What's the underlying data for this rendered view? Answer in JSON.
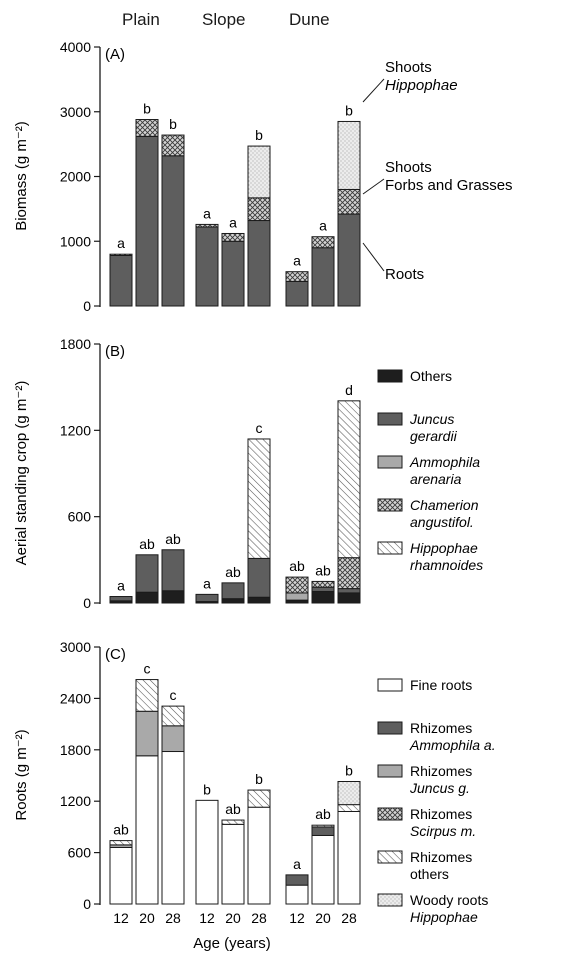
{
  "sites": [
    "Plain",
    "Slope",
    "Dune"
  ],
  "xlabel": "Age (years)",
  "ages": [
    "12",
    "20",
    "28"
  ],
  "palette": {
    "roots_dark": "#5e5e5e",
    "shoot_grey": "#8e8e8e",
    "hippo_light": "#e0e0e0",
    "others": "#1e1e1e",
    "juncus": "#555555",
    "ammophila": "#a9a9a9",
    "fine": "#ffffff",
    "woody": "#cfcfcf"
  },
  "chart_data": [
    {
      "type": "bar",
      "panel": "(A)",
      "ylabel": "Biomass (g m⁻²)",
      "ylim": [
        0,
        4000
      ],
      "yticks": [
        0,
        1000,
        2000,
        3000,
        4000
      ],
      "groups": [
        "Plain",
        "Slope",
        "Dune"
      ],
      "categories": [
        "12",
        "20",
        "28"
      ],
      "stacked": true,
      "series": [
        {
          "name": "Roots",
          "pattern": "dark",
          "values": [
            [
              780,
              2620,
              2320
            ],
            [
              1220,
              1000,
              1320
            ],
            [
              380,
              900,
              1420
            ]
          ]
        },
        {
          "name": "Shoots Forbs and Grasses",
          "pattern": "crosshatch",
          "values": [
            [
              20,
              260,
              320
            ],
            [
              40,
              120,
              350
            ],
            [
              150,
              170,
              380
            ]
          ]
        },
        {
          "name": "Shoots Hippophae",
          "pattern": "stipple",
          "values": [
            [
              0,
              0,
              0
            ],
            [
              0,
              0,
              800
            ],
            [
              0,
              0,
              1050
            ]
          ]
        }
      ],
      "letters": [
        [
          "a",
          "b",
          "b"
        ],
        [
          "a",
          "a",
          "b"
        ],
        [
          "a",
          "a",
          "b"
        ]
      ],
      "callouts": [
        {
          "lines": [
            "Shoots",
            "Hippophae"
          ],
          "italic_line": 1
        },
        {
          "lines": [
            "Shoots",
            "Forbs and Grasses"
          ],
          "italic_line": -1
        },
        {
          "lines": [
            "Roots"
          ],
          "italic_line": -1
        }
      ]
    },
    {
      "type": "bar",
      "panel": "(B)",
      "ylabel": "Aerial standing crop (g m⁻²)",
      "ylim": [
        0,
        1800
      ],
      "yticks": [
        0,
        600,
        1200,
        1800
      ],
      "groups": [
        "Plain",
        "Slope",
        "Dune"
      ],
      "categories": [
        "12",
        "20",
        "28"
      ],
      "stacked": true,
      "series": [
        {
          "name": "Others",
          "pattern": "black",
          "values": [
            [
              15,
              75,
              85
            ],
            [
              10,
              30,
              40
            ],
            [
              20,
              80,
              70
            ]
          ]
        },
        {
          "name": "Juncus gerardii",
          "pattern": "dark",
          "values": [
            [
              30,
              260,
              285
            ],
            [
              50,
              110,
              270
            ],
            [
              0,
              30,
              30
            ]
          ]
        },
        {
          "name": "Ammophila arenaria",
          "pattern": "grey",
          "values": [
            [
              0,
              0,
              0
            ],
            [
              0,
              0,
              0
            ],
            [
              50,
              0,
              0
            ]
          ]
        },
        {
          "name": "Chamerion angustifol.",
          "pattern": "crosshatch",
          "values": [
            [
              0,
              0,
              0
            ],
            [
              0,
              0,
              0
            ],
            [
              110,
              40,
              215
            ]
          ]
        },
        {
          "name": "Hippophae rhamnoides",
          "pattern": "diagonal",
          "values": [
            [
              0,
              0,
              0
            ],
            [
              0,
              0,
              830
            ],
            [
              0,
              0,
              1090
            ]
          ]
        }
      ],
      "letters": [
        [
          "a",
          "ab",
          "ab"
        ],
        [
          "a",
          "ab",
          "c"
        ],
        [
          "ab",
          "ab",
          "d"
        ]
      ],
      "legend": [
        {
          "line1": "Others",
          "line2": "",
          "pattern": "black"
        },
        {
          "line1": "Juncus",
          "line2": "gerardii",
          "pattern": "dark",
          "italic": true
        },
        {
          "line1": "Ammophila",
          "line2": "arenaria",
          "pattern": "grey",
          "italic": true
        },
        {
          "line1": "Chamerion",
          "line2": "angustifol.",
          "pattern": "crosshatch",
          "italic": true
        },
        {
          "line1": "Hippophae",
          "line2": "rhamnoides",
          "pattern": "diagonal",
          "italic": true
        }
      ]
    },
    {
      "type": "bar",
      "panel": "(C)",
      "ylabel": "Roots (g m⁻²)",
      "ylim": [
        0,
        3000
      ],
      "yticks": [
        0,
        600,
        1200,
        1800,
        2400,
        3000
      ],
      "groups": [
        "Plain",
        "Slope",
        "Dune"
      ],
      "categories": [
        "12",
        "20",
        "28"
      ],
      "stacked": true,
      "series": [
        {
          "name": "Fine roots",
          "pattern": "white",
          "values": [
            [
              660,
              1730,
              1780
            ],
            [
              1210,
              930,
              1130
            ],
            [
              220,
              800,
              1080
            ]
          ]
        },
        {
          "name": "Rhizomes Ammophila a.",
          "pattern": "dark",
          "values": [
            [
              0,
              0,
              0
            ],
            [
              0,
              0,
              0
            ],
            [
              120,
              100,
              0
            ]
          ]
        },
        {
          "name": "Rhizomes Juncus g.",
          "pattern": "grey",
          "values": [
            [
              30,
              520,
              300
            ],
            [
              0,
              0,
              0
            ],
            [
              0,
              0,
              0
            ]
          ]
        },
        {
          "name": "Rhizomes Scirpus m.",
          "pattern": "crosshatch",
          "values": [
            [
              0,
              0,
              0
            ],
            [
              0,
              0,
              0
            ],
            [
              0,
              0,
              0
            ]
          ]
        },
        {
          "name": "Rhizomes others",
          "pattern": "diagonal",
          "values": [
            [
              50,
              370,
              230
            ],
            [
              0,
              50,
              200
            ],
            [
              0,
              20,
              80
            ]
          ]
        },
        {
          "name": "Woody roots Hippophae",
          "pattern": "stipple",
          "values": [
            [
              0,
              0,
              0
            ],
            [
              0,
              0,
              0
            ],
            [
              0,
              0,
              270
            ]
          ]
        }
      ],
      "letters": [
        [
          "ab",
          "c",
          "c"
        ],
        [
          "b",
          "ab",
          "b"
        ],
        [
          "a",
          "ab",
          "b"
        ]
      ],
      "legend": [
        {
          "line1": "Fine roots",
          "line2": "",
          "pattern": "white"
        },
        {
          "line1": "Rhizomes",
          "line2": "Ammophila a.",
          "pattern": "dark",
          "italic2": true
        },
        {
          "line1": "Rhizomes",
          "line2": "Juncus g.",
          "pattern": "grey",
          "italic2": true
        },
        {
          "line1": "Rhizomes",
          "line2": "Scirpus m.",
          "pattern": "crosshatch",
          "italic2": true
        },
        {
          "line1": "Rhizomes",
          "line2": "others",
          "pattern": "diagonal"
        },
        {
          "line1": "Woody roots",
          "line2": "Hippophae",
          "pattern": "stipple",
          "italic2": true
        }
      ]
    }
  ]
}
